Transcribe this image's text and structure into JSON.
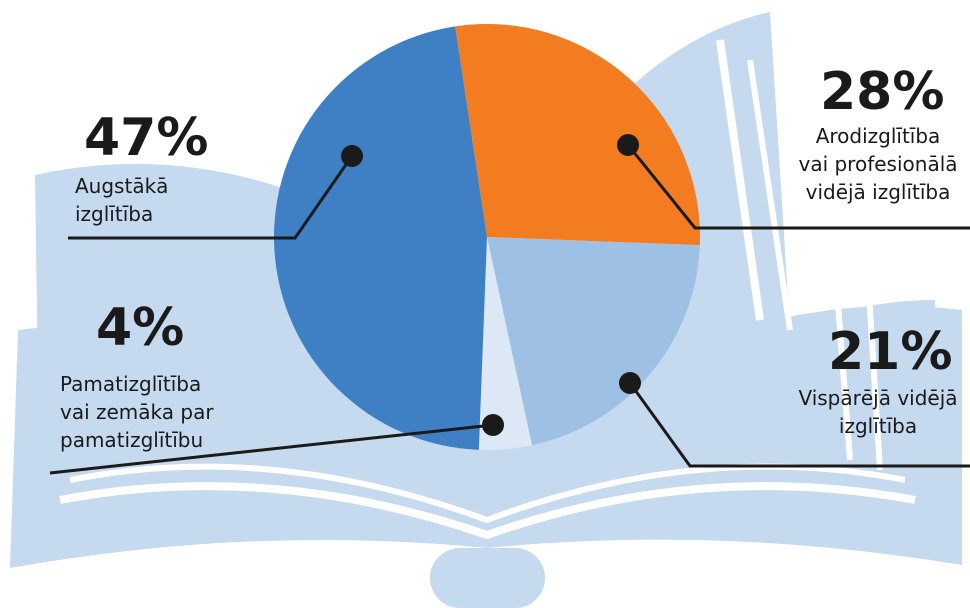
{
  "chart_data": {
    "type": "pie",
    "categories": [
      "Arodizglītība\nvai profesionālā\nvidējā izglītība",
      "Vispārējā vidējā\nizglītība",
      "Pamatizglītība\nvai zemāka par\npamatizglītību",
      "Augstākā\nizglītība"
    ],
    "values": [
      28,
      21,
      4,
      47
    ],
    "value_labels": [
      "28%",
      "21%",
      "4%",
      "47%"
    ],
    "colors": [
      "#f47c20",
      "#9dc0e4",
      "#dce8f5",
      "#3f7fc4"
    ]
  }
}
